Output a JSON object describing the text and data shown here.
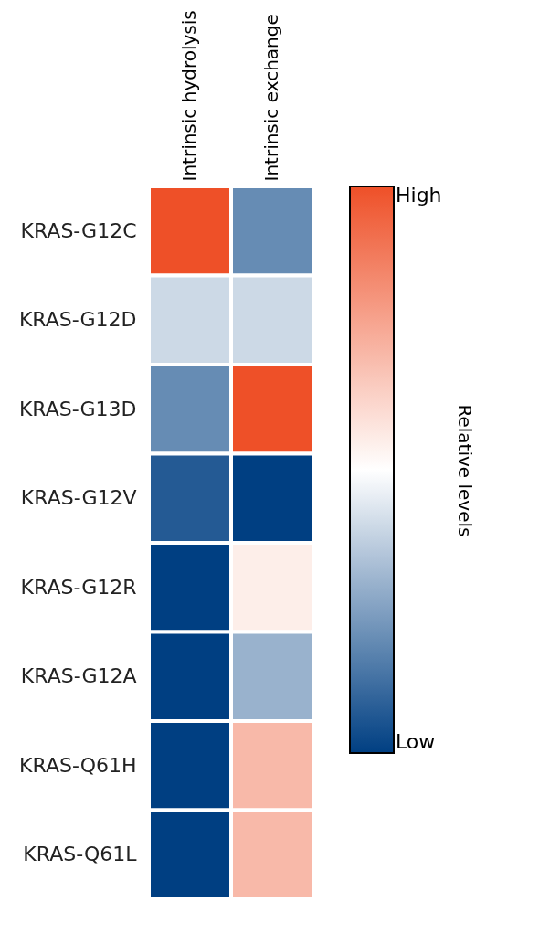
{
  "chart_data": {
    "type": "heatmap",
    "categories": [
      "Intrinsic hydrolysis",
      "Intrinsic exchange"
    ],
    "y_categories": [
      "KRAS-G12C",
      "KRAS-G12D",
      "KRAS-G13D",
      "KRAS-G12V",
      "KRAS-G12R",
      "KRAS-G12A",
      "KRAS-Q61H",
      "KRAS-Q61L"
    ],
    "cells": [
      [
        1.0,
        0.2
      ],
      [
        0.4,
        0.4
      ],
      [
        0.2,
        1.0
      ],
      [
        0.07,
        0.0
      ],
      [
        0.0,
        0.55
      ],
      [
        0.0,
        0.3
      ],
      [
        0.0,
        0.7
      ],
      [
        0.0,
        0.7
      ]
    ],
    "clabel": "Relative levels",
    "clim": [
      0,
      1
    ],
    "cticks": [
      {
        "value": 0,
        "label": "Low"
      },
      {
        "value": 1,
        "label": "High"
      }
    ]
  }
}
